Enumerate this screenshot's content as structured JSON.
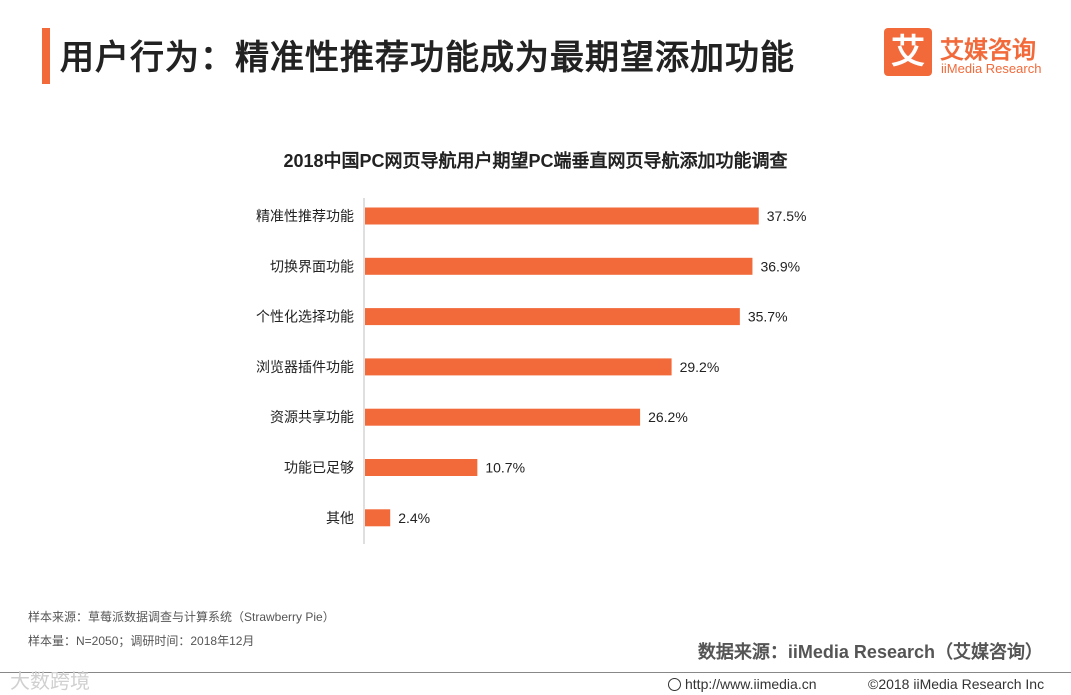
{
  "header": {
    "title": "用户行为：精准性推荐功能成为最期望添加功能",
    "logo_glyph": "艾",
    "logo_cn": "艾媒咨询",
    "logo_en": "iiMedia Research"
  },
  "colors": {
    "accent": "#f26a3a",
    "bar": "#f26a3a"
  },
  "chart_data": {
    "type": "bar",
    "orientation": "horizontal",
    "title": "2018中国PC网页导航用户期望PC端垂直网页导航添加功能调查",
    "categories": [
      "精准性推荐功能",
      "切换界面功能",
      "个性化选择功能",
      "浏览器插件功能",
      "资源共享功能",
      "功能已足够",
      "其他"
    ],
    "values": [
      37.5,
      36.9,
      35.7,
      29.2,
      26.2,
      10.7,
      2.4
    ],
    "value_labels": [
      "37.5%",
      "36.9%",
      "35.7%",
      "29.2%",
      "26.2%",
      "10.7%",
      "2.4%"
    ],
    "unit": "%",
    "xlim": [
      0,
      40
    ],
    "grid": false,
    "legend": "none"
  },
  "footer": {
    "sample_source": "样本来源：草莓派数据调查与计算系统（Strawberry Pie）",
    "sample_size": "样本量：N=2050；调研时间：2018年12月",
    "data_source": "数据来源：iiMedia Research（艾媒咨询）",
    "watermark": "大数跨境",
    "website": "http://www.iimedia.cn",
    "copyright": "©2018  iiMedia Research  Inc"
  }
}
